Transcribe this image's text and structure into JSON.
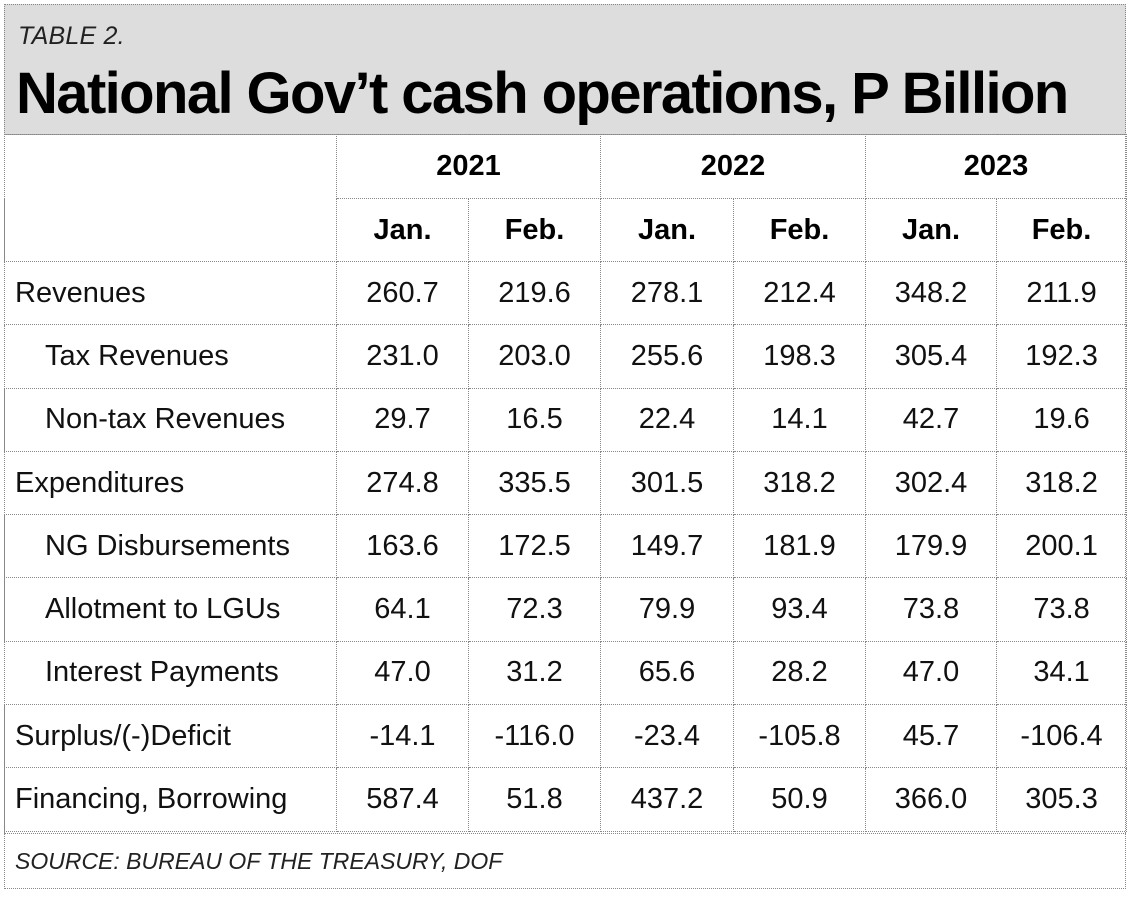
{
  "table_label": "TABLE 2.",
  "title": "National Gov’t cash operations, P Billion",
  "years": [
    "2021",
    "2022",
    "2023"
  ],
  "months": [
    "Jan.",
    "Feb.",
    "Jan.",
    "Feb.",
    "Jan.",
    "Feb."
  ],
  "rows": [
    {
      "label": "Revenues",
      "values": [
        "260.7",
        "219.6",
        "278.1",
        "212.4",
        "348.2",
        "211.9"
      ]
    },
    {
      "label": "Tax Revenues",
      "values": [
        "231.0",
        "203.0",
        "255.6",
        "198.3",
        "305.4",
        "192.3"
      ]
    },
    {
      "label": "Non-tax Revenues",
      "values": [
        "29.7",
        "16.5",
        "22.4",
        "14.1",
        "42.7",
        "19.6"
      ]
    },
    {
      "label": "Expenditures",
      "values": [
        "274.8",
        "335.5",
        "301.5",
        "318.2",
        "302.4",
        "318.2"
      ]
    },
    {
      "label": "NG Disbursements",
      "values": [
        "163.6",
        "172.5",
        "149.7",
        "181.9",
        "179.9",
        "200.1"
      ]
    },
    {
      "label": "Allotment to LGUs",
      "values": [
        "64.1",
        "72.3",
        "79.9",
        "93.4",
        "73.8",
        "73.8"
      ]
    },
    {
      "label": "Interest Payments",
      "values": [
        "47.0",
        "31.2",
        "65.6",
        "28.2",
        "47.0",
        "34.1"
      ]
    },
    {
      "label": "Surplus/(-)Deficit",
      "values": [
        "-14.1",
        "-116.0",
        "-23.4",
        "-105.8",
        "45.7",
        "-106.4"
      ]
    },
    {
      "label": "Financing, Borrowing",
      "values": [
        "587.4",
        "51.8",
        "437.2",
        "50.9",
        "366.0",
        "305.3"
      ]
    }
  ],
  "source": "SOURCE: BUREAU OF THE TREASURY, DOF",
  "colors": {
    "header_bg": "#dddddd",
    "border": "#888888",
    "text": "#111111"
  }
}
